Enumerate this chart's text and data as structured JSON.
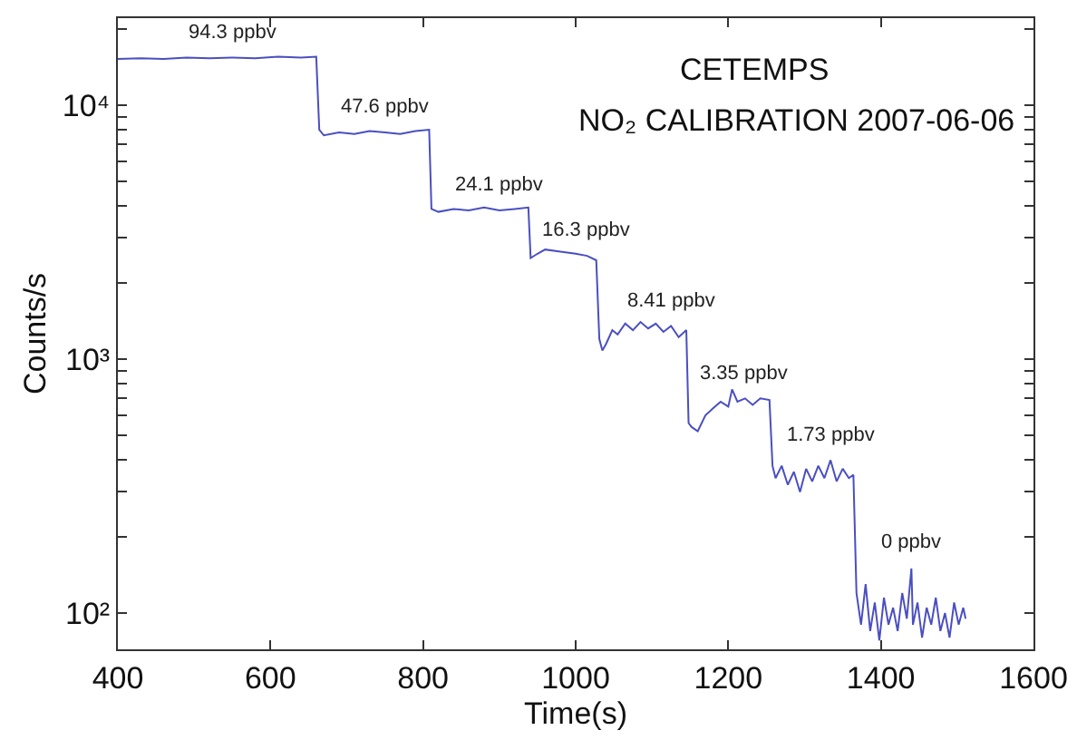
{
  "chart_data": {
    "type": "line",
    "title": "CETEMPS",
    "subtitle": "NO₂ CALIBRATION 2007-06-06",
    "xlabel": "Time(s)",
    "ylabel": "Counts/s",
    "log": true,
    "xlim": [
      400,
      1600
    ],
    "xticks": [
      400,
      600,
      800,
      1000,
      1200,
      1400,
      1600
    ],
    "ylim": [
      72,
      22000
    ],
    "yticks": [
      {
        "value": 100,
        "label": "10²"
      },
      {
        "value": 200,
        "label": null
      },
      {
        "value": 300,
        "label": null
      },
      {
        "value": 400,
        "label": null
      },
      {
        "value": 500,
        "label": null
      },
      {
        "value": 600,
        "label": null
      },
      {
        "value": 700,
        "label": null
      },
      {
        "value": 800,
        "label": null
      },
      {
        "value": 900,
        "label": null
      },
      {
        "value": 1000,
        "label": "10³"
      },
      {
        "value": 2000,
        "label": null
      },
      {
        "value": 3000,
        "label": null
      },
      {
        "value": 4000,
        "label": null
      },
      {
        "value": 5000,
        "label": null
      },
      {
        "value": 6000,
        "label": null
      },
      {
        "value": 7000,
        "label": null
      },
      {
        "value": 8000,
        "label": null
      },
      {
        "value": 9000,
        "label": null
      },
      {
        "value": 10000,
        "label": "10⁴"
      },
      {
        "value": 20000,
        "label": null
      }
    ],
    "x": [
      400,
      430,
      460,
      490,
      520,
      550,
      580,
      610,
      640,
      660,
      664,
      670,
      690,
      710,
      730,
      750,
      770,
      790,
      808,
      811,
      820,
      840,
      860,
      880,
      900,
      920,
      938,
      941,
      950,
      960,
      980,
      1000,
      1015,
      1027,
      1031,
      1035,
      1040,
      1048,
      1055,
      1065,
      1075,
      1085,
      1095,
      1105,
      1115,
      1125,
      1135,
      1145,
      1148,
      1152,
      1160,
      1170,
      1180,
      1190,
      1200,
      1205,
      1212,
      1222,
      1232,
      1242,
      1254,
      1258,
      1262,
      1270,
      1278,
      1286,
      1294,
      1302,
      1310,
      1318,
      1326,
      1334,
      1342,
      1350,
      1358,
      1364,
      1368,
      1374,
      1380,
      1386,
      1392,
      1398,
      1404,
      1410,
      1416,
      1422,
      1428,
      1434,
      1440,
      1442,
      1448,
      1454,
      1460,
      1466,
      1472,
      1478,
      1484,
      1490,
      1496,
      1502,
      1508,
      1511
    ],
    "series": [
      {
        "color": "#4a4fc0",
        "values": [
          15200,
          15300,
          15200,
          15400,
          15300,
          15400,
          15300,
          15500,
          15400,
          15500,
          8000,
          7600,
          7800,
          7700,
          7900,
          7800,
          7700,
          7900,
          8000,
          3900,
          3800,
          3900,
          3850,
          3950,
          3850,
          3900,
          3950,
          2500,
          2600,
          2700,
          2650,
          2600,
          2550,
          2450,
          1200,
          1080,
          1150,
          1300,
          1250,
          1380,
          1300,
          1400,
          1320,
          1380,
          1280,
          1350,
          1220,
          1300,
          560,
          540,
          520,
          600,
          640,
          680,
          650,
          760,
          680,
          700,
          660,
          700,
          690,
          380,
          340,
          380,
          320,
          360,
          300,
          370,
          330,
          380,
          340,
          400,
          330,
          370,
          340,
          350,
          120,
          90,
          130,
          85,
          110,
          78,
          115,
          90,
          105,
          85,
          120,
          95,
          150,
          90,
          110,
          80,
          105,
          90,
          115,
          85,
          100,
          80,
          110,
          90,
          105,
          95
        ]
      }
    ],
    "annotations": [
      {
        "text": "94.3 ppbv",
        "x": 550,
        "y": 15400
      },
      {
        "text": "47.6 ppbv",
        "x": 750,
        "y": 7800
      },
      {
        "text": "24.1 ppbv",
        "x": 900,
        "y": 3850
      },
      {
        "text": "16.3 ppbv",
        "x": 1015,
        "y": 2550
      },
      {
        "text": "8.41 ppbv",
        "x": 1125,
        "y": 1350
      },
      {
        "text": "3.35 ppbv",
        "x": 1222,
        "y": 700
      },
      {
        "text": "1.73 ppbv",
        "x": 1334,
        "y": 400
      },
      {
        "text": "0 ppbv",
        "x": 1440,
        "y": 150
      }
    ]
  }
}
